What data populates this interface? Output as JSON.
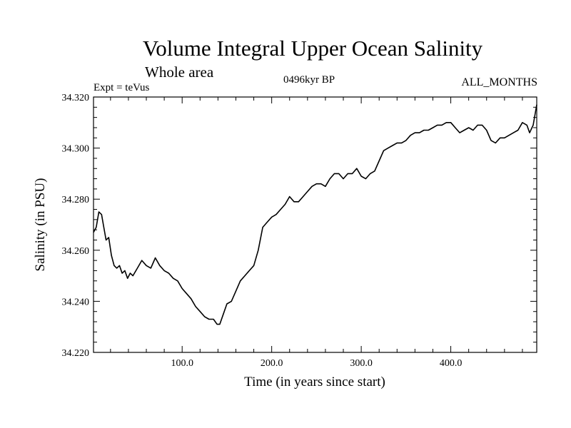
{
  "chart_data": {
    "type": "line",
    "title": "Volume Integral Upper Ocean Salinity",
    "subtitle": "Whole area",
    "annotations": {
      "experiment": "Expt = teVus",
      "period": "0496kyr BP",
      "months": "ALL_MONTHS"
    },
    "xlabel": "Time (in years since start)",
    "ylabel": "Salinity (in PSU)",
    "xlim": [
      1,
      496
    ],
    "ylim": [
      34.22,
      34.32
    ],
    "x_ticks": [
      100,
      200,
      300,
      400
    ],
    "x_tick_labels": [
      "100.0",
      "200.0",
      "300.0",
      "400.0"
    ],
    "y_ticks": [
      34.22,
      34.24,
      34.26,
      34.28,
      34.3,
      34.32
    ],
    "y_tick_labels": [
      "34.220",
      "34.240",
      "34.260",
      "34.280",
      "34.300",
      "34.320"
    ],
    "grid": false,
    "series": [
      {
        "color": "#000000",
        "x": [
          1,
          4,
          7,
          10,
          12,
          15,
          18,
          21,
          24,
          27,
          30,
          33,
          36,
          39,
          42,
          45,
          50,
          55,
          60,
          65,
          70,
          75,
          80,
          85,
          90,
          95,
          100,
          105,
          110,
          115,
          120,
          125,
          130,
          135,
          139,
          142,
          146,
          150,
          155,
          160,
          165,
          170,
          175,
          180,
          185,
          190,
          195,
          200,
          205,
          210,
          215,
          220,
          225,
          230,
          235,
          240,
          245,
          250,
          255,
          260,
          265,
          270,
          275,
          280,
          285,
          290,
          295,
          300,
          305,
          310,
          315,
          320,
          325,
          330,
          335,
          340,
          345,
          350,
          355,
          360,
          365,
          370,
          375,
          380,
          385,
          390,
          395,
          400,
          405,
          410,
          415,
          420,
          425,
          430,
          435,
          440,
          445,
          450,
          455,
          460,
          465,
          470,
          475,
          480,
          485,
          488,
          492,
          496
        ],
        "values": [
          34.267,
          34.269,
          34.275,
          34.274,
          34.27,
          34.264,
          34.265,
          34.258,
          34.254,
          34.253,
          34.254,
          34.251,
          34.252,
          34.249,
          34.251,
          34.25,
          34.253,
          34.256,
          34.254,
          34.253,
          34.257,
          34.254,
          34.252,
          34.251,
          34.249,
          34.248,
          34.245,
          34.243,
          34.241,
          34.238,
          34.236,
          34.234,
          34.233,
          34.233,
          34.231,
          34.231,
          34.235,
          34.239,
          34.24,
          34.244,
          34.248,
          34.25,
          34.252,
          34.254,
          34.26,
          34.269,
          34.271,
          34.273,
          34.274,
          34.276,
          34.278,
          34.281,
          34.279,
          34.279,
          34.281,
          34.283,
          34.285,
          34.286,
          34.286,
          34.285,
          34.288,
          34.29,
          34.29,
          34.288,
          34.29,
          34.29,
          34.292,
          34.289,
          34.288,
          34.29,
          34.291,
          34.295,
          34.299,
          34.3,
          34.301,
          34.302,
          34.302,
          34.303,
          34.305,
          34.306,
          34.306,
          34.307,
          34.307,
          34.308,
          34.309,
          34.309,
          34.31,
          34.31,
          34.308,
          34.306,
          34.307,
          34.308,
          34.307,
          34.309,
          34.309,
          34.307,
          34.303,
          34.302,
          34.304,
          34.304,
          34.305,
          34.306,
          34.307,
          34.31,
          34.309,
          34.306,
          34.309,
          34.317
        ]
      }
    ]
  }
}
